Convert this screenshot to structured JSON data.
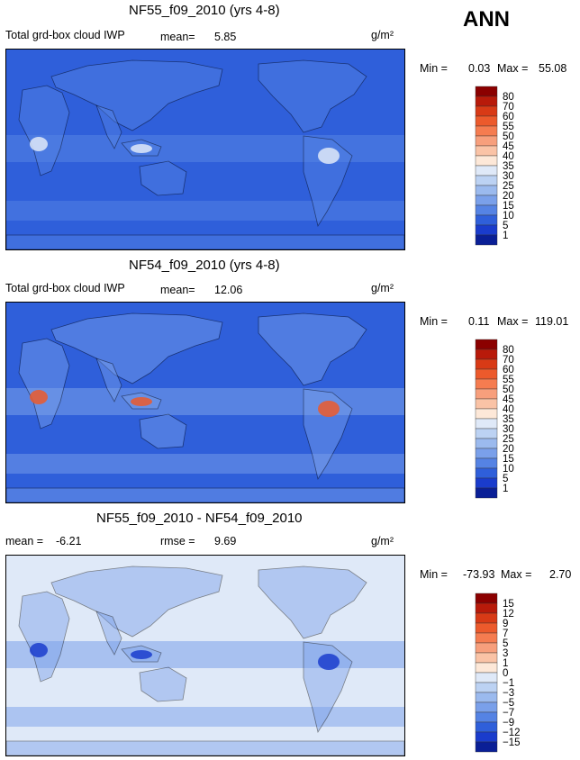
{
  "season": "ANN",
  "units": "g/m²",
  "chart_data": [
    {
      "type": "heatmap",
      "title": "NF55_f09_2010 (yrs 4-8)",
      "variable": "Total grd-box cloud IWP",
      "mean_label": "mean=",
      "mean_value": "5.85",
      "min_label": "Min =",
      "min_value": "0.03",
      "max_label": "Max =",
      "max_value": "55.08",
      "levels": [
        "80",
        "70",
        "60",
        "55",
        "50",
        "45",
        "40",
        "35",
        "30",
        "25",
        "20",
        "15",
        "10",
        "5",
        "1"
      ],
      "colors": [
        "#8b0000",
        "#b81a0a",
        "#d83a16",
        "#ec5a2c",
        "#f57c50",
        "#f79f7c",
        "#fac3a6",
        "#fde8d8",
        "#dfe9f8",
        "#bcd2f3",
        "#9bbaee",
        "#7aa0ea",
        "#5583e4",
        "#2f5fda",
        "#1a3ccc",
        "#0a1f96"
      ],
      "field_levels": {
        "background": 13,
        "tropics": 12,
        "maxima": 8
      }
    },
    {
      "type": "heatmap",
      "title": "NF54_f09_2010 (yrs 4-8)",
      "variable": "Total grd-box cloud IWP",
      "mean_label": "mean=",
      "mean_value": "12.06",
      "min_label": "Min =",
      "min_value": "0.11",
      "max_label": "Max =",
      "max_value": "119.01",
      "levels": [
        "80",
        "70",
        "60",
        "55",
        "50",
        "45",
        "40",
        "35",
        "30",
        "25",
        "20",
        "15",
        "10",
        "5",
        "1"
      ],
      "colors": [
        "#8b0000",
        "#b81a0a",
        "#d83a16",
        "#ec5a2c",
        "#f57c50",
        "#f79f7c",
        "#fac3a6",
        "#fde8d8",
        "#dfe9f8",
        "#bcd2f3",
        "#9bbaee",
        "#7aa0ea",
        "#5583e4",
        "#2f5fda",
        "#1a3ccc",
        "#0a1f96"
      ],
      "field_levels": {
        "background": 13,
        "tropics": 11,
        "maxima": 3
      }
    },
    {
      "type": "heatmap",
      "title": "NF55_f09_2010 - NF54_f09_2010",
      "mean_label": "mean =",
      "mean_value": "-6.21",
      "rmse_label": "rmse =",
      "rmse_value": "9.69",
      "min_label": "Min =",
      "min_value": "-73.93",
      "max_label": "Max =",
      "max_value": "2.70",
      "levels": [
        "15",
        "12",
        "9",
        "7",
        "5",
        "3",
        "1",
        "0",
        "−1",
        "−3",
        "−5",
        "−7",
        "−9",
        "−12",
        "−15"
      ],
      "colors": [
        "#8b0000",
        "#b81a0a",
        "#d83a16",
        "#ec5a2c",
        "#f57c50",
        "#f79f7c",
        "#fac3a6",
        "#fde8d8",
        "#dfe9f8",
        "#bcd2f3",
        "#9bbaee",
        "#7aa0ea",
        "#5583e4",
        "#2f5fda",
        "#1a3ccc",
        "#0a1f96"
      ],
      "field_levels": {
        "background": 8,
        "tropics": 11,
        "maxima": 14
      }
    }
  ]
}
